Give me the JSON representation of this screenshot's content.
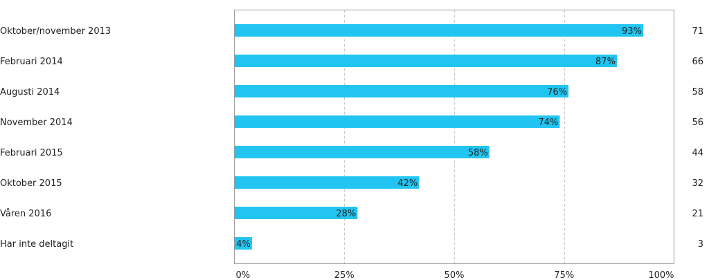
{
  "chart_data": {
    "type": "bar",
    "orientation": "horizontal",
    "title": "",
    "xlabel": "",
    "ylabel": "",
    "xlim": [
      0,
      100
    ],
    "x_ticks": [
      0,
      25,
      50,
      75,
      100
    ],
    "x_tick_labels": [
      "0%",
      "25%",
      "50%",
      "75%",
      "100%"
    ],
    "grid": "vertical dashed",
    "legend": "none",
    "bar_color": "#22C5F1",
    "categories": [
      "Oktober/november 2013",
      "Februari 2014",
      "Augusti 2014",
      "November 2014",
      "Februari 2015",
      "Oktober 2015",
      "Våren 2016",
      "Har inte deltagit"
    ],
    "values": [
      93,
      87,
      76,
      74,
      58,
      42,
      28,
      4
    ],
    "value_labels": [
      "93%",
      "87%",
      "76%",
      "74%",
      "58%",
      "42%",
      "28%",
      "4%"
    ],
    "counts": [
      "71",
      "66",
      "58",
      "56",
      "44",
      "32",
      "21",
      "3"
    ]
  }
}
